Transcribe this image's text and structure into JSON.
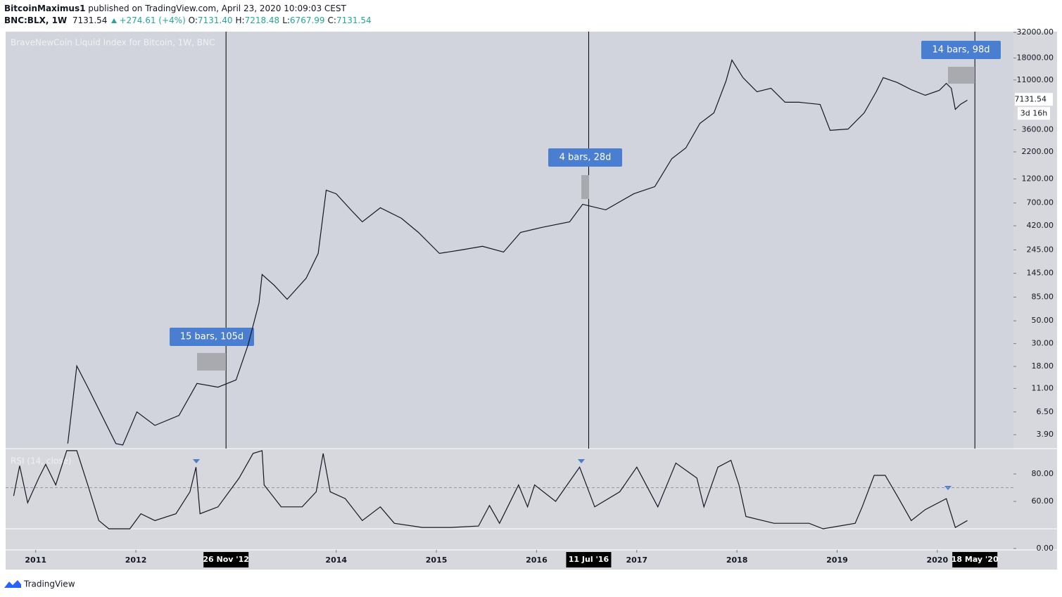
{
  "header": {
    "author": "BitcoinMaximus1",
    "published": "published on TradingView.com, April 23, 2020 10:09:03 CEST",
    "symbol": "BNC:BLX, 1W",
    "last": "7131.54",
    "change": "+274.61 (+4%)",
    "ohlc": [
      {
        "key": "O:",
        "value": "7131.40"
      },
      {
        "key": "H:",
        "value": "7218.48"
      },
      {
        "key": "L:",
        "value": "6767.99"
      },
      {
        "key": "C:",
        "value": "7131.54"
      }
    ]
  },
  "chart_data": [
    {
      "type": "line",
      "title": "BraveNewCoin Liquid Index for Bitcoin, 1W, BNC",
      "log_scale": true,
      "color": "#131722",
      "x": [
        2011.32,
        2011.37,
        2011.41,
        2011.52,
        2011.66,
        2011.8,
        2011.87,
        2012.01,
        2012.19,
        2012.43,
        2012.61,
        2012.82,
        2013.0,
        2013.12,
        2013.23,
        2013.26,
        2013.38,
        2013.51,
        2013.7,
        2013.82,
        2013.9,
        2014.0,
        2014.16,
        2014.26,
        2014.44,
        2014.65,
        2014.82,
        2015.03,
        2015.24,
        2015.46,
        2015.67,
        2015.84,
        2016.05,
        2016.33,
        2016.46,
        2016.69,
        2016.97,
        2017.18,
        2017.35,
        2017.49,
        2017.63,
        2017.77,
        2017.89,
        2017.95,
        2018.06,
        2018.2,
        2018.34,
        2018.48,
        2018.62,
        2018.83,
        2018.93,
        2019.11,
        2019.27,
        2019.39,
        2019.46,
        2019.6,
        2019.74,
        2019.88,
        2020.02,
        2020.09,
        2020.14,
        2020.18,
        2020.23,
        2020.3
      ],
      "values": [
        3.2,
        8.3,
        18.2,
        11.3,
        6.0,
        3.2,
        3.1,
        6.5,
        4.8,
        6.0,
        12.3,
        11.3,
        13.3,
        29.2,
        75,
        141,
        111,
        81,
        130,
        226,
        933,
        860,
        581,
        459,
        629,
        497,
        362,
        226,
        244,
        265,
        233,
        362,
        405,
        459,
        680,
        601,
        860,
        1010,
        1890,
        2400,
        4160,
        5270,
        10700,
        17200,
        11600,
        8450,
        9150,
        6680,
        6680,
        6370,
        3560,
        3670,
        5270,
        8450,
        11600,
        10400,
        8860,
        7810,
        8730,
        10200,
        9150,
        5700,
        6370,
        7000
      ],
      "xlim": [
        2010.7,
        2020.76
      ],
      "ylim": [
        2.9,
        32500
      ],
      "xticks": [
        2011,
        2012,
        2014,
        2015,
        2016,
        2017,
        2018,
        2019,
        2020
      ],
      "yticks": [
        {
          "value": 32000,
          "label": "32000.00"
        },
        {
          "value": 18000,
          "label": "18000.00"
        },
        {
          "value": 11000,
          "label": "11000.00"
        },
        {
          "value": 3600,
          "label": "3600.00"
        },
        {
          "value": 2200,
          "label": "2200.00"
        },
        {
          "value": 1200,
          "label": "1200.00"
        },
        {
          "value": 700,
          "label": "700.00"
        },
        {
          "value": 420,
          "label": "420.00"
        },
        {
          "value": 245,
          "label": "245.00"
        },
        {
          "value": 145,
          "label": "145.00"
        },
        {
          "value": 85,
          "label": "85.00"
        },
        {
          "value": 50,
          "label": "50.00"
        },
        {
          "value": 30,
          "label": "30.00"
        },
        {
          "value": 18,
          "label": "18.00"
        },
        {
          "value": 11,
          "label": "11.00"
        },
        {
          "value": 6.5,
          "label": "6.50"
        },
        {
          "value": 3.9,
          "label": "3.90"
        }
      ],
      "markers": [
        {
          "value": 2012.9,
          "label": "26 Nov '12"
        },
        {
          "value": 2016.52,
          "label": "11 Jul '16"
        },
        {
          "value": 2020.375,
          "label": "18 May '20"
        }
      ],
      "annotations": [
        "15 bars, 105d",
        "4 bars, 28d",
        "14 bars, 98d"
      ],
      "last_price": 7131.54,
      "countdown": "3d 16h"
    },
    {
      "type": "line",
      "title": "RSI (14, close)",
      "color": "#131722",
      "x": [
        2010.78,
        2010.84,
        2010.92,
        2011.03,
        2011.1,
        2011.2,
        2011.31,
        2011.41,
        2011.52,
        2011.63,
        2011.73,
        2011.94,
        2012.05,
        2012.19,
        2012.4,
        2012.54,
        2012.6,
        2012.64,
        2012.82,
        2013.03,
        2013.17,
        2013.26,
        2013.28,
        2013.45,
        2013.66,
        2013.8,
        2013.87,
        2013.94,
        2014.09,
        2014.26,
        2014.44,
        2014.58,
        2014.86,
        2015.14,
        2015.42,
        2015.53,
        2015.63,
        2015.82,
        2015.91,
        2015.98,
        2016.19,
        2016.43,
        2016.58,
        2016.83,
        2017.0,
        2017.21,
        2017.39,
        2017.6,
        2017.67,
        2017.81,
        2017.94,
        2018.02,
        2018.09,
        2018.37,
        2018.72,
        2018.86,
        2019.18,
        2019.25,
        2019.37,
        2019.48,
        2019.6,
        2019.74,
        2019.88,
        2020.09,
        2020.18,
        2020.3
      ],
      "values": [
        64,
        86,
        59,
        77,
        87,
        72,
        97,
        97,
        72,
        46,
        40,
        40,
        51,
        46,
        51,
        67,
        85,
        51,
        56,
        77,
        95,
        97,
        72,
        56,
        56,
        67,
        95,
        67,
        62,
        46,
        56,
        44,
        41,
        41,
        42,
        57,
        44,
        72,
        56,
        72,
        60,
        85,
        56,
        67,
        85,
        56,
        88,
        77,
        56,
        85,
        90,
        72,
        49,
        44,
        44,
        40,
        44,
        56,
        79,
        79,
        64,
        46,
        54,
        62,
        41,
        46
      ],
      "xlim": [
        2010.7,
        2020.76
      ],
      "ylim": [
        40,
        98.5
      ],
      "yticks": [
        {
          "value": 80,
          "label": "80.00"
        },
        {
          "value": 60,
          "label": "60.00"
        }
      ],
      "hline": 70,
      "lower_ticks": [
        {
          "value": 0,
          "label": "0.00"
        }
      ]
    }
  ],
  "footer": {
    "brand": "TradingView"
  }
}
